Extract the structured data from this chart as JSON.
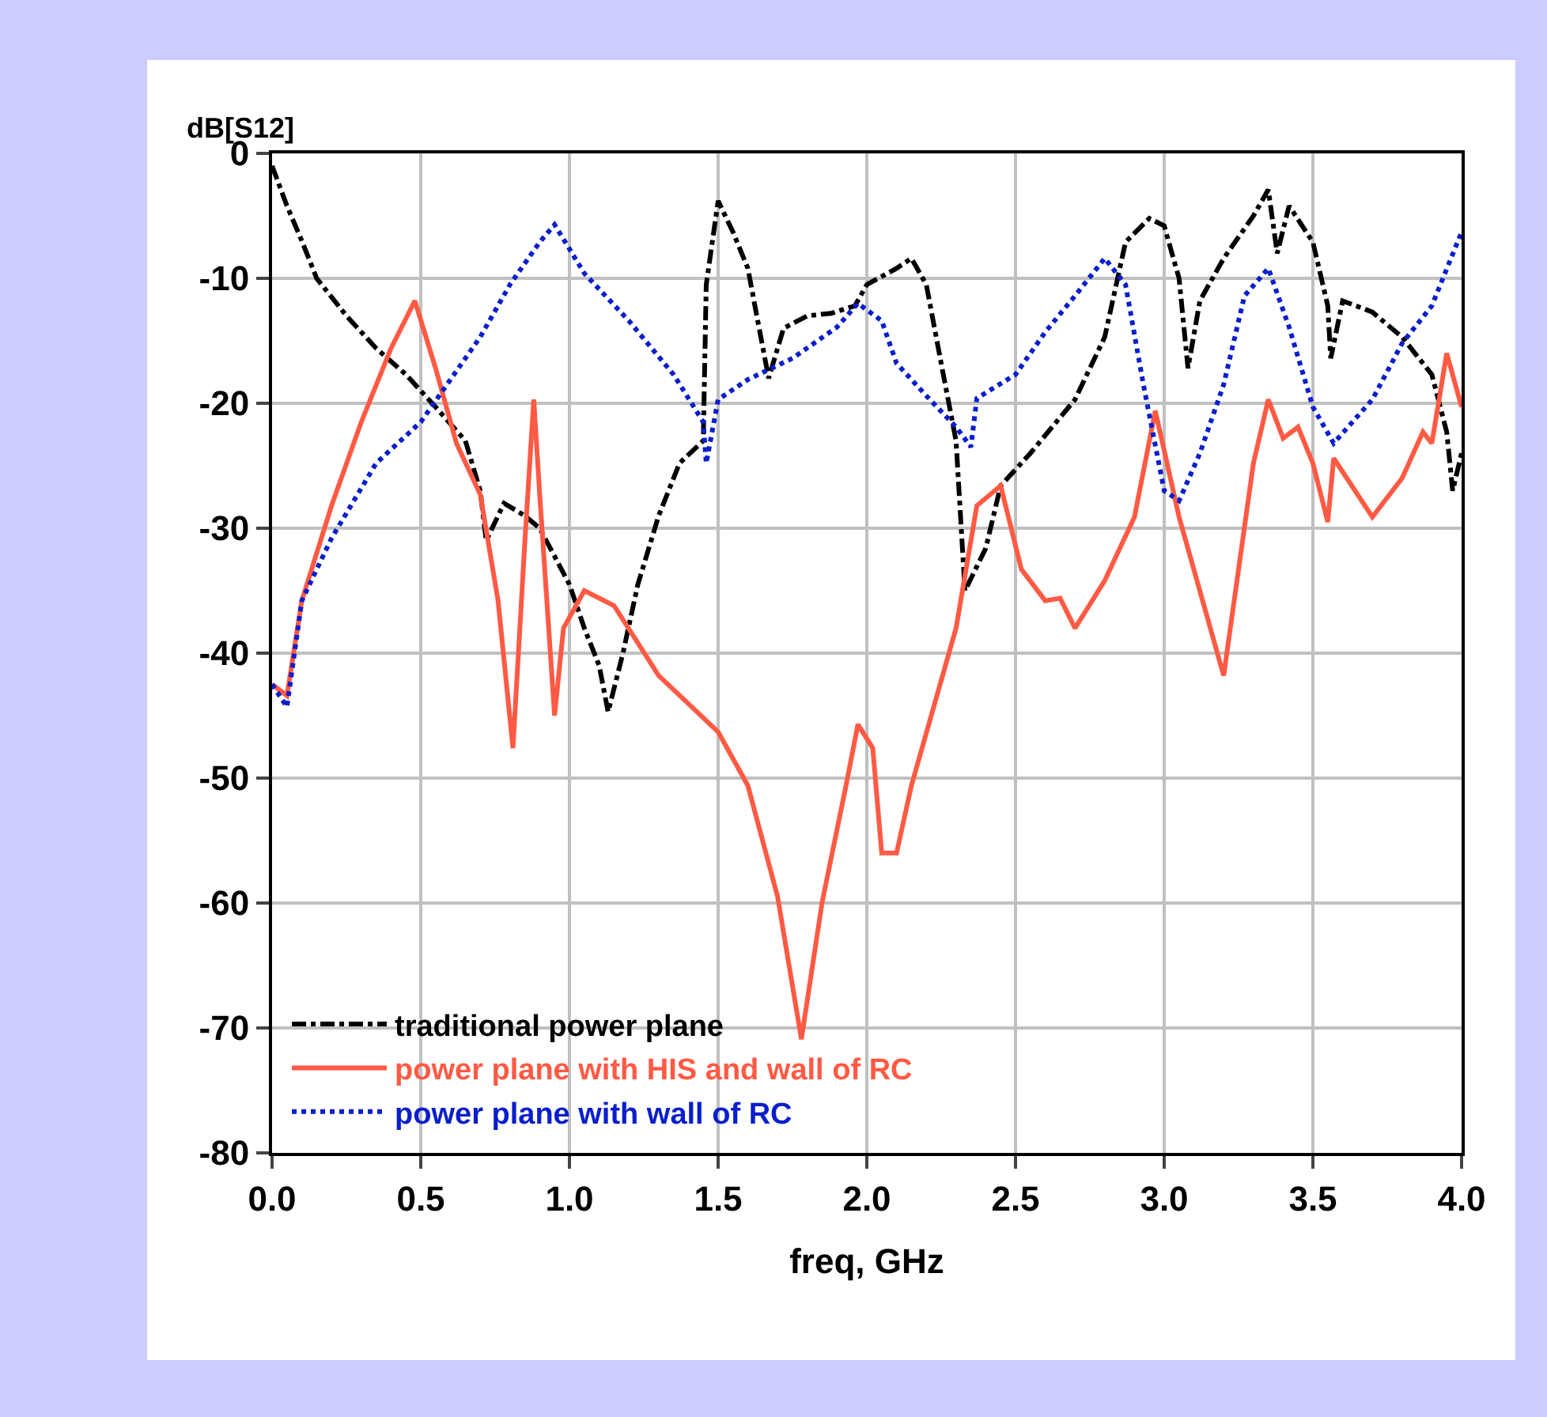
{
  "chart_data": {
    "type": "line",
    "xlabel": "freq, GHz",
    "ylabel": "dB[S12]",
    "xlim": [
      0,
      4
    ],
    "ylim": [
      -80,
      0
    ],
    "xticks": [
      {
        "value": 0,
        "label": "0.0"
      },
      0.5,
      {
        "value": 1,
        "label": "1.0"
      },
      1.5,
      {
        "value": 2,
        "label": "2.0"
      },
      2.5,
      {
        "value": 3,
        "label": "3.0"
      },
      3.5,
      {
        "value": 4,
        "label": "4.0"
      }
    ],
    "yticks": [
      0,
      -10,
      -20,
      -30,
      -40,
      -50,
      -60,
      -70,
      -80
    ],
    "grid": true,
    "legend": "bottom left",
    "marker": "none",
    "series": [
      {
        "name": "traditional power plane",
        "color": "#000000",
        "line_style": "dashed",
        "x": [
          0,
          0.05,
          0.1,
          0.15,
          0.25,
          0.35,
          0.45,
          0.55,
          0.65,
          0.7,
          0.72,
          0.78,
          0.85,
          0.9,
          1.0,
          1.05,
          1.1,
          1.13,
          1.18,
          1.23,
          1.3,
          1.37,
          1.45,
          1.46,
          1.5,
          1.55,
          1.6,
          1.63,
          1.67,
          1.72,
          1.8,
          1.88,
          1.96,
          2.0,
          2.1,
          2.15,
          2.2,
          2.25,
          2.3,
          2.33,
          2.4,
          2.45,
          2.55,
          2.7,
          2.8,
          2.87,
          2.95,
          3.0,
          3.05,
          3.08,
          3.12,
          3.2,
          3.3,
          3.35,
          3.38,
          3.42,
          3.5,
          3.55,
          3.56,
          3.6,
          3.7,
          3.8,
          3.9,
          3.95,
          3.97,
          4.0
        ],
        "values": [
          -1,
          -4.2,
          -7,
          -10,
          -13,
          -15.6,
          -17.7,
          -20.3,
          -23,
          -27,
          -31,
          -28,
          -29,
          -30,
          -34.5,
          -38,
          -41,
          -44.7,
          -40,
          -34.5,
          -29,
          -24.8,
          -23,
          -10.5,
          -3.8,
          -6.3,
          -9.2,
          -13,
          -18,
          -14,
          -13,
          -12.8,
          -12.2,
          -10.5,
          -9.2,
          -8.4,
          -10.5,
          -16.8,
          -23,
          -35,
          -31.6,
          -26.6,
          -24,
          -19.7,
          -14.7,
          -7.1,
          -5.2,
          -5.8,
          -10,
          -17.2,
          -11.8,
          -8.4,
          -5,
          -2.9,
          -8,
          -4.2,
          -7.1,
          -12.2,
          -16.4,
          -11.8,
          -12.7,
          -14.7,
          -17.7,
          -22.3,
          -27,
          -24
        ]
      },
      {
        "name": "power plane with HIS and wall of RC",
        "color": "#ff5a44",
        "line_style": "solid",
        "x": [
          0,
          0.05,
          0.1,
          0.2,
          0.3,
          0.4,
          0.48,
          0.55,
          0.62,
          0.7,
          0.76,
          0.81,
          0.85,
          0.88,
          0.9,
          0.95,
          0.98,
          1.05,
          1.15,
          1.3,
          1.5,
          1.6,
          1.7,
          1.78,
          1.85,
          1.93,
          1.97,
          2.02,
          2.05,
          2.1,
          2.15,
          2.3,
          2.37,
          2.45,
          2.52,
          2.6,
          2.65,
          2.7,
          2.8,
          2.9,
          2.97,
          3.05,
          3.2,
          3.3,
          3.35,
          3.4,
          3.45,
          3.5,
          3.55,
          3.57,
          3.7,
          3.8,
          3.87,
          3.9,
          3.95,
          4.0
        ],
        "values": [
          -42.5,
          -43.4,
          -35.8,
          -28.2,
          -21.5,
          -15.6,
          -11.8,
          -17.2,
          -23.2,
          -27.3,
          -35.8,
          -47.6,
          -31.1,
          -19.7,
          -27.3,
          -45,
          -38,
          -35,
          -36.2,
          -41.8,
          -46.3,
          -50.6,
          -59.5,
          -70.9,
          -59.9,
          -50.6,
          -45.7,
          -47.6,
          -56,
          -56,
          -50.6,
          -38,
          -28.2,
          -26.6,
          -33.3,
          -35.8,
          -35.6,
          -38,
          -34.2,
          -29.1,
          -20.6,
          -29.1,
          -41.8,
          -24.8,
          -19.7,
          -22.8,
          -21.9,
          -24.8,
          -29.5,
          -24.4,
          -29.1,
          -26,
          -22.3,
          -23.2,
          -16,
          -20.3
        ]
      },
      {
        "name": "power plane with wall of RC",
        "color": "#0a1ecc",
        "line_style": "dotted",
        "x": [
          0,
          0.05,
          0.1,
          0.2,
          0.35,
          0.5,
          0.6,
          0.7,
          0.8,
          0.9,
          0.95,
          1.05,
          1.2,
          1.35,
          1.45,
          1.46,
          1.5,
          1.6,
          1.75,
          1.9,
          1.97,
          2.05,
          2.1,
          2.2,
          2.3,
          2.35,
          2.37,
          2.5,
          2.6,
          2.7,
          2.8,
          2.87,
          2.93,
          3.0,
          3.05,
          3.12,
          3.2,
          3.27,
          3.35,
          3.42,
          3.5,
          3.57,
          3.7,
          3.8,
          3.9,
          4.0
        ],
        "values": [
          -42.5,
          -44.3,
          -35.8,
          -30.8,
          -24.8,
          -21.5,
          -18.1,
          -14.7,
          -10.5,
          -7.1,
          -5.7,
          -9.6,
          -13.4,
          -17.7,
          -21.5,
          -24.8,
          -19.7,
          -18.1,
          -16.4,
          -13.9,
          -12,
          -13.4,
          -16.8,
          -19.4,
          -21.9,
          -23.5,
          -19.6,
          -17.7,
          -14.3,
          -11.4,
          -8.4,
          -10.5,
          -18.5,
          -27,
          -27.8,
          -24,
          -18.5,
          -11.4,
          -9.2,
          -13.9,
          -20.3,
          -23.2,
          -19.7,
          -15.2,
          -12.2,
          -6.3
        ]
      }
    ]
  }
}
